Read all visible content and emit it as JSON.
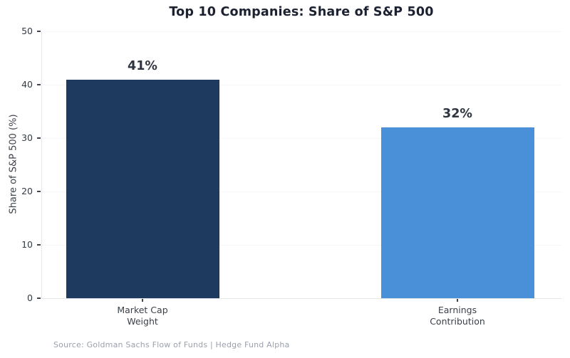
{
  "chart_data": {
    "type": "bar",
    "title": "Top 10 Companies: Share of S&P 500",
    "categories": [
      "Market Cap\nWeight",
      "Earnings\nContribution"
    ],
    "values": [
      41,
      32
    ],
    "value_labels": [
      "41%",
      "32%"
    ],
    "bar_colors": [
      "#1f3a5f",
      "#4a90d9"
    ],
    "xlabel": "",
    "ylabel": "Share of S&P 500 (%)",
    "ylim": [
      0,
      50
    ],
    "yticks": [
      0,
      10,
      20,
      30,
      40,
      50
    ],
    "grid": "faint horizontal gridlines",
    "legend": "none"
  },
  "footer": {
    "source": "Source: Goldman Sachs Flow of Funds  |  Hedge Fund Alpha"
  },
  "colors": {
    "title_text": "#1b2130",
    "bar_navy": "#1f3a5f",
    "bar_blue": "#4a90d9",
    "value_label_text": "#2f3540",
    "tick_label_text": "#333a44",
    "axis_label_text": "#3b404a",
    "spine": "#e4e6e8",
    "gridline": "#f6f7f8",
    "source_text": "#9ba1ac",
    "background": "#ffffff"
  }
}
